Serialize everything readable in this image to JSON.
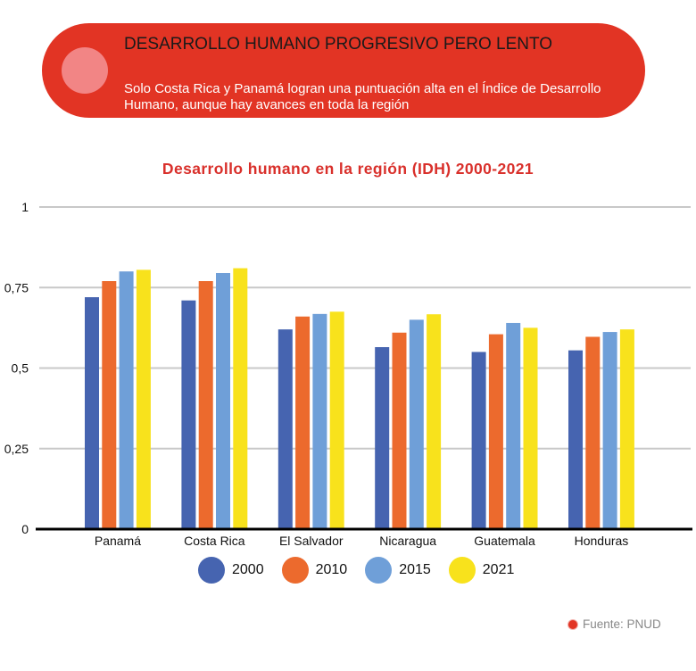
{
  "banner": {
    "title": "DESARROLLO HUMANO PROGRESIVO PERO LENTO",
    "subtitle": "Solo Costa Rica y Panamá logran una puntuación alta en el Índice de Desarrollo Humano, aunque hay avances en toda la región",
    "color": "#e23424"
  },
  "source": {
    "text": "Fuente: PNUD"
  },
  "chart_data": {
    "type": "bar",
    "title": "Desarrollo humano en la región (IDH) 2000-2021",
    "xlabel": "",
    "ylabel": "",
    "categories": [
      "Panamá",
      "Costa Rica",
      "El Salvador",
      "Nicaragua",
      "Guatemala",
      "Honduras"
    ],
    "series": [
      {
        "name": "2000",
        "color": "#4664b0",
        "values": [
          0.72,
          0.71,
          0.62,
          0.565,
          0.55,
          0.555
        ]
      },
      {
        "name": "2010",
        "color": "#ec6a2d",
        "values": [
          0.77,
          0.77,
          0.66,
          0.61,
          0.605,
          0.597
        ]
      },
      {
        "name": "2015",
        "color": "#6f9fd8",
        "values": [
          0.8,
          0.795,
          0.668,
          0.65,
          0.64,
          0.612
        ]
      },
      {
        "name": "2021",
        "color": "#f8e21c",
        "values": [
          0.805,
          0.81,
          0.675,
          0.667,
          0.625,
          0.62
        ]
      }
    ],
    "yticks": [
      {
        "value": 0,
        "label": "0"
      },
      {
        "value": 0.25,
        "label": "0,25"
      },
      {
        "value": 0.5,
        "label": "0,5"
      },
      {
        "value": 0.75,
        "label": "0,75"
      },
      {
        "value": 1,
        "label": "1"
      }
    ],
    "ylim": [
      0,
      1
    ],
    "grid": true,
    "legend": "bottom"
  }
}
